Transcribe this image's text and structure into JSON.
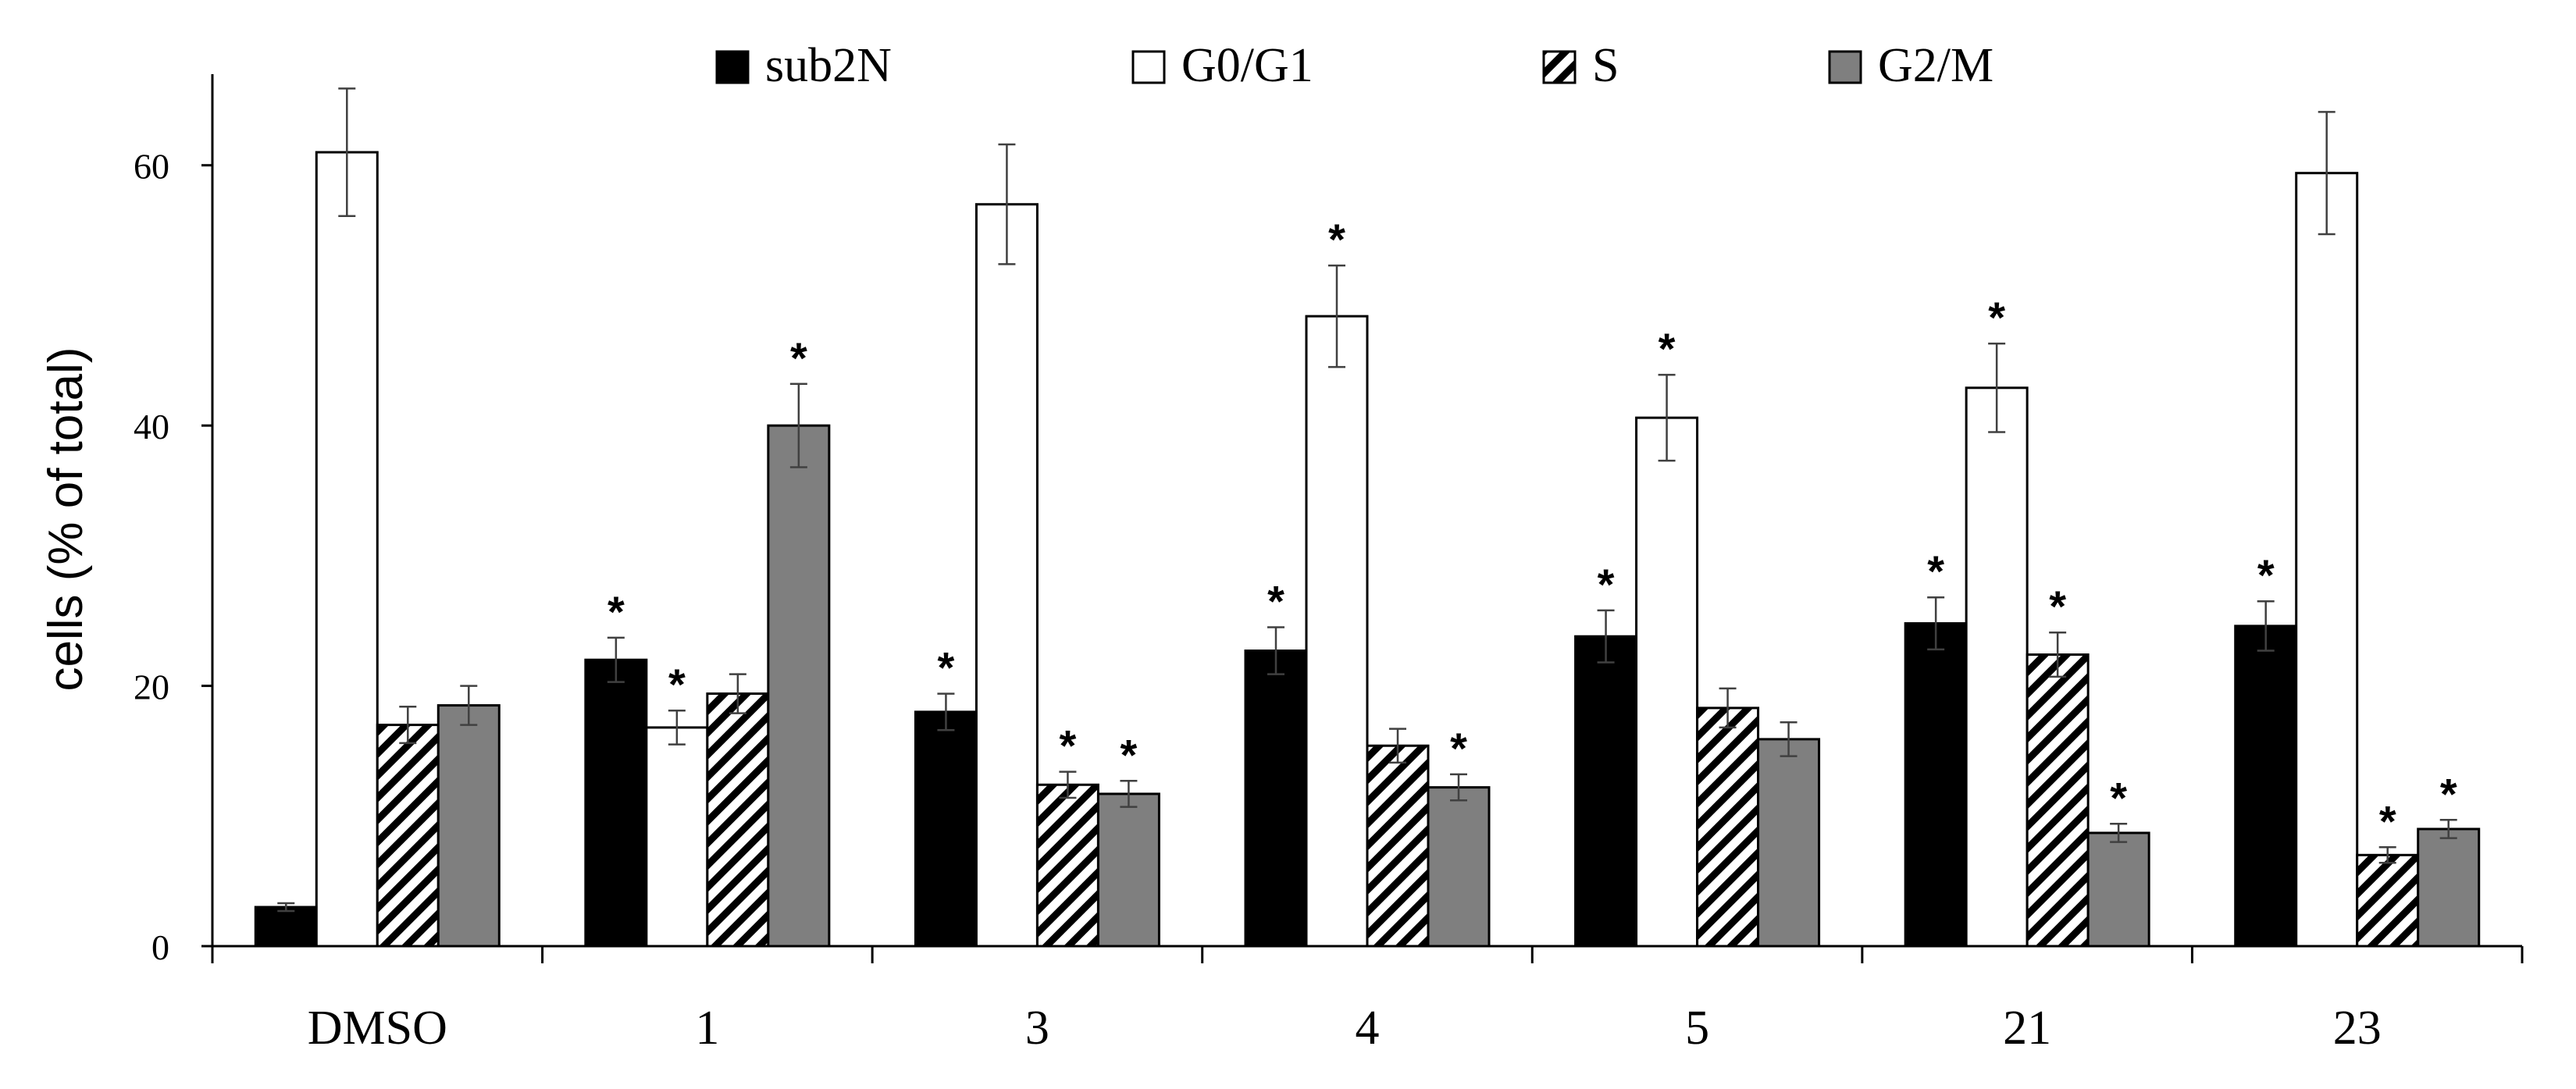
{
  "chart_data": {
    "type": "bar",
    "title": "",
    "xlabel": "",
    "ylabel": "cells (% of total)",
    "ylim": [
      0,
      67
    ],
    "yticks": [
      0,
      20,
      40,
      60
    ],
    "grid": false,
    "legend_position": "top-center",
    "categories": [
      "DMSO",
      "1",
      "3",
      "4",
      "5",
      "21",
      "23"
    ],
    "series": [
      {
        "name": "sub2N",
        "pattern": "solid-black",
        "values": [
          3.0,
          22.0,
          18.0,
          22.7,
          23.8,
          24.8,
          24.6
        ],
        "errors": [
          0.3,
          1.7,
          1.4,
          1.8,
          2.0,
          2.0,
          1.9
        ],
        "significant": [
          false,
          true,
          true,
          true,
          true,
          true,
          true
        ]
      },
      {
        "name": "G0/G1",
        "pattern": "white",
        "values": [
          61.0,
          16.8,
          57.0,
          48.4,
          40.6,
          42.9,
          59.4
        ],
        "errors": [
          4.9,
          1.3,
          4.6,
          3.9,
          3.3,
          3.4,
          4.7
        ],
        "significant": [
          false,
          true,
          false,
          true,
          true,
          true,
          false
        ]
      },
      {
        "name": "S",
        "pattern": "hatched",
        "values": [
          17.0,
          19.4,
          12.4,
          15.4,
          18.3,
          22.4,
          7.0
        ],
        "errors": [
          1.4,
          1.5,
          1.0,
          1.3,
          1.5,
          1.7,
          0.6
        ],
        "significant": [
          false,
          false,
          true,
          false,
          false,
          true,
          true
        ]
      },
      {
        "name": "G2/M",
        "pattern": "solid-gray",
        "values": [
          18.5,
          40.0,
          11.7,
          12.2,
          15.9,
          8.7,
          9.0
        ],
        "errors": [
          1.5,
          3.2,
          1.0,
          1.0,
          1.3,
          0.7,
          0.7
        ],
        "significant": [
          false,
          true,
          true,
          true,
          false,
          true,
          true
        ]
      }
    ],
    "significance_marker": "*"
  },
  "colors": {
    "sub2N": "#000000",
    "G0G1": "#ffffff",
    "S_hatch": "#000000",
    "G2M": "#7f7f7f",
    "axis": "#000000",
    "error_bar": "#404040"
  }
}
